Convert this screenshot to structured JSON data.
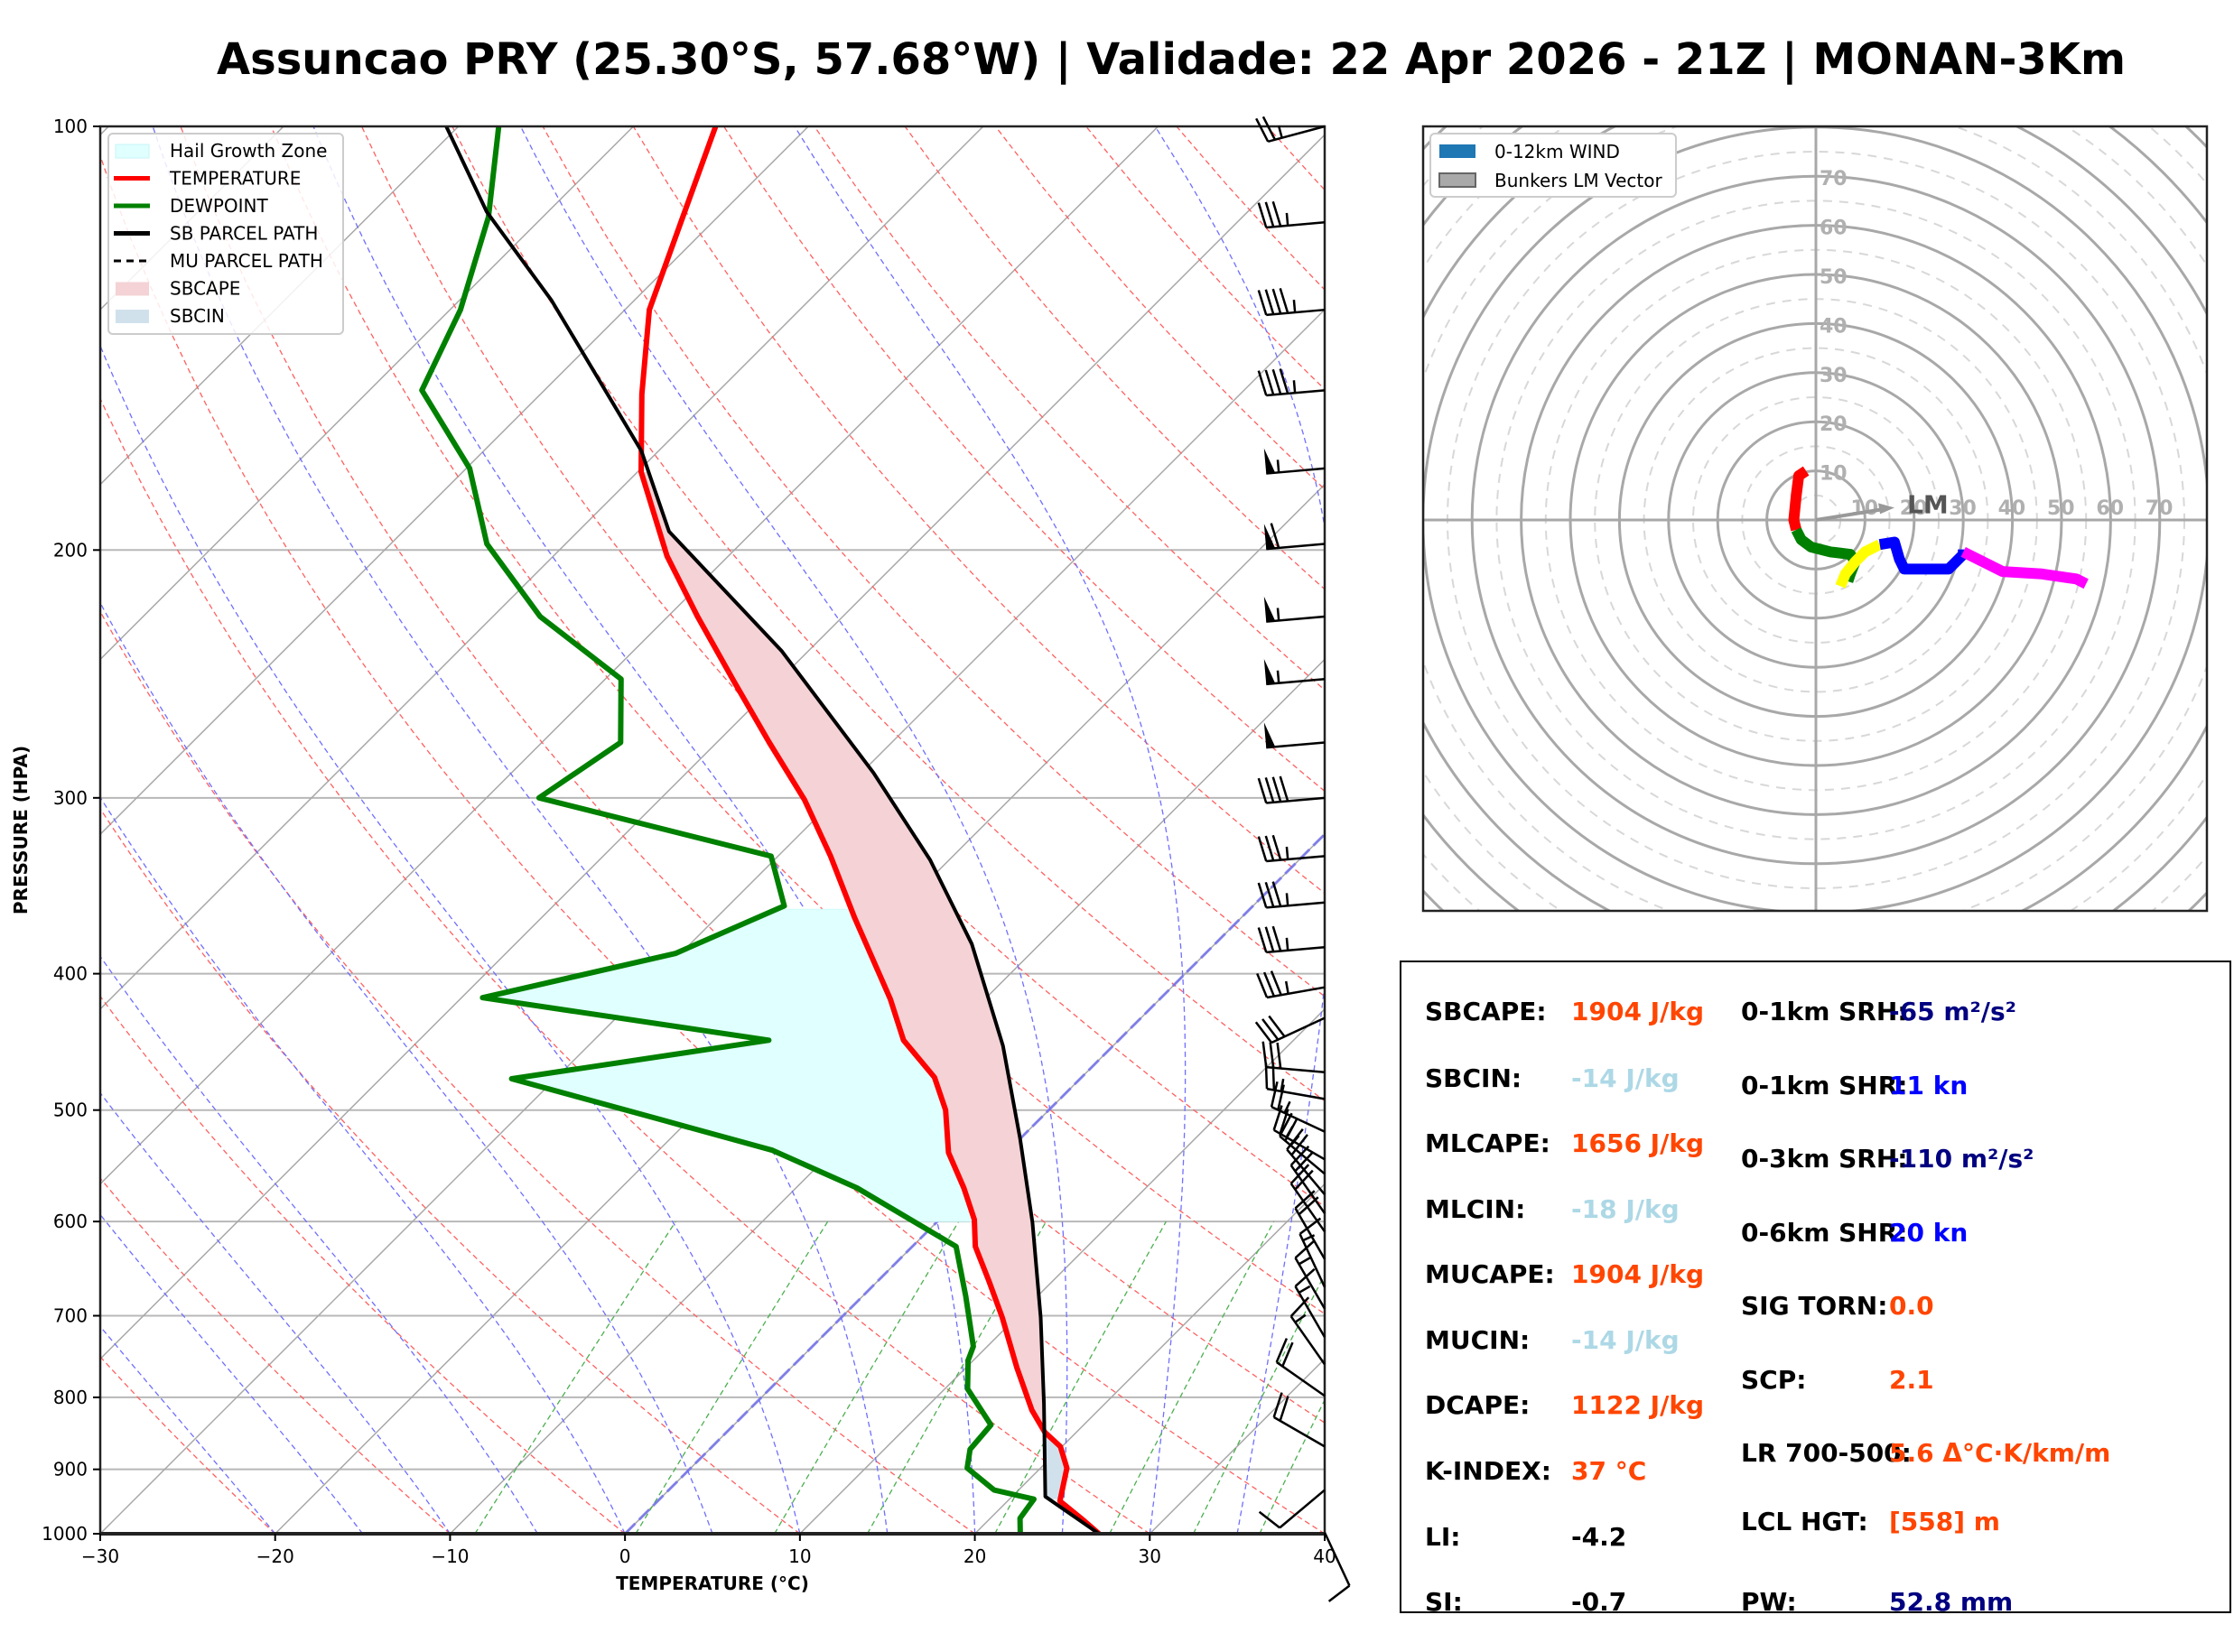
{
  "title": "Assuncao PRY (25.30°S, 57.68°W) | Validade: 22 Apr 2026 - 21Z | MONAN-3Km",
  "chart_data": [
    {
      "type": "line",
      "subtype": "skew-t",
      "xlabel": "TEMPERATURE (°C)",
      "ylabel": "PRESSURE (HPA)",
      "xlim": [
        -30,
        40
      ],
      "ylim": [
        1000,
        100
      ],
      "yscale": "log",
      "xticks": [
        -30,
        -20,
        -10,
        0,
        10,
        20,
        30,
        40
      ],
      "xtick_labels": [
        "−30",
        "−20",
        "−10",
        "0",
        "10",
        "20",
        "30",
        "40"
      ],
      "yticks": [
        100,
        200,
        300,
        400,
        500,
        600,
        700,
        800,
        900,
        1000
      ],
      "ytick_labels": [
        "100",
        "200",
        "300",
        "400",
        "500",
        "600",
        "700",
        "800",
        "900",
        "1000"
      ],
      "grid": true,
      "legend_position": "top-left",
      "legend": [
        {
          "label": "Hail Growth Zone",
          "kind": "patch",
          "color": "#e0ffff",
          "edge": "#c8f4f8"
        },
        {
          "label": "TEMPERATURE",
          "kind": "line",
          "color": "#ff0000"
        },
        {
          "label": "DEWPOINT",
          "kind": "line",
          "color": "#008000"
        },
        {
          "label": "SB PARCEL PATH",
          "kind": "line",
          "color": "#000000"
        },
        {
          "label": "MU PARCEL PATH",
          "kind": "dashed",
          "color": "#000000"
        },
        {
          "label": "SBCAPE",
          "kind": "patch",
          "color": "#f4d2d5"
        },
        {
          "label": "SBCIN",
          "kind": "patch",
          "color": "#d0e1ec"
        }
      ],
      "series": [
        {
          "name": "TEMPERATURE",
          "color": "#ff0000",
          "p": [
            1000,
            979,
            948,
            898,
            867,
            847,
            817,
            762,
            702,
            662,
            625,
            598,
            568,
            536,
            500,
            474,
            446,
            417,
            365,
            330,
            301,
            274,
            248,
            223,
            202,
            176,
            155,
            135,
            117,
            100
          ],
          "t": [
            27.1,
            25.5,
            23.0,
            21.5,
            19.9,
            18.2,
            16.2,
            12.9,
            9.2,
            6.4,
            3.6,
            2.0,
            -0.4,
            -3.3,
            -5.9,
            -8.4,
            -12.3,
            -15.4,
            -22.1,
            -27.0,
            -31.7,
            -37.0,
            -42.5,
            -48.3,
            -53.5,
            -59.8,
            -64.2,
            -68.6,
            -71.8,
            -75.3
          ]
        },
        {
          "name": "DEWPOINT",
          "color": "#008000",
          "p": [
            1000,
            975,
            945,
            931,
            898,
            871,
            837,
            789,
            753,
            736,
            702,
            678,
            625,
            568,
            534,
            508,
            475,
            446,
            416,
            387,
            358,
            330,
            300,
            274,
            247,
            223,
            198,
            175,
            154,
            135,
            116,
            100
          ],
          "t": [
            22.6,
            21.7,
            21.4,
            18.6,
            15.8,
            14.9,
            14.7,
            11.3,
            9.7,
            9.2,
            7.3,
            5.9,
            2.5,
            -6.5,
            -13.5,
            -21.6,
            -32.5,
            -20.0,
            -38.8,
            -30.3,
            -26.8,
            -30.4,
            -47.0,
            -45.5,
            -49.1,
            -57.3,
            -64.5,
            -69.8,
            -77.0,
            -79.4,
            -83.1,
            -87.7
          ]
        },
        {
          "name": "SB PARCEL PATH",
          "color": "#000000",
          "p": [
            1000,
            941,
            808,
            702,
            601,
            524,
            450,
            381,
            332,
            288,
            236,
            194,
            170,
            133,
            115,
            100
          ],
          "t": [
            27.1,
            21.9,
            16.5,
            11.4,
            5.5,
            0.0,
            -6.3,
            -13.9,
            -21.1,
            -29.3,
            -41.5,
            -54.8,
            -61.0,
            -74.7,
            -83.5,
            -90.7
          ]
        }
      ],
      "shaded_regions": [
        {
          "name": "SBCAPE",
          "color": "#f4d2d5",
          "p_range": [
            850,
            176
          ]
        },
        {
          "name": "SBCIN",
          "color": "#d0e1ec",
          "p_range": [
            945,
            850
          ]
        },
        {
          "name": "Hail Growth Zone",
          "color": "#e0ffff",
          "p_range": [
            600,
            360
          ]
        }
      ],
      "wind_barbs": {
        "p": [
          100,
          117,
          135,
          154,
          175,
          198,
          223,
          247,
          274,
          300,
          330,
          356,
          383,
          409,
          430,
          470,
          491,
          518,
          542,
          555,
          574,
          592,
          610,
          638,
          668,
          692,
          725,
          758,
          798,
          867,
          931,
          998
        ],
        "speed_kn": [
          25,
          35,
          45,
          45,
          55,
          60,
          55,
          55,
          50,
          40,
          35,
          35,
          35,
          35,
          30,
          30,
          25,
          25,
          25,
          25,
          20,
          20,
          20,
          20,
          15,
          15,
          15,
          15,
          20,
          20,
          10,
          10
        ],
        "direction_deg": [
          255,
          265,
          265,
          265,
          265,
          265,
          265,
          265,
          265,
          265,
          265,
          265,
          265,
          260,
          245,
          275,
          280,
          295,
          300,
          310,
          320,
          325,
          325,
          330,
          335,
          330,
          330,
          325,
          305,
          300,
          230,
          155
        ]
      }
    },
    {
      "type": "line",
      "subtype": "hodograph",
      "units": "kn",
      "rings": [
        10,
        20,
        30,
        40,
        50,
        60,
        70
      ],
      "ring_labels": [
        "10",
        "20",
        "30",
        "40",
        "50",
        "60",
        "70"
      ],
      "legend_position": "top-left",
      "legend": [
        {
          "label": "0-12km WIND",
          "color": "#1f77b4"
        },
        {
          "label": "Bunkers LM Vector",
          "color": "#a9a9a9"
        }
      ],
      "series": [
        {
          "name": "0-1km",
          "color": "#ff0000",
          "u": [
            -2,
            -3.5,
            -4,
            -4.5,
            -4
          ],
          "v": [
            10,
            9,
            5,
            0,
            -2
          ]
        },
        {
          "name": "1-3km",
          "color": "#008000",
          "u": [
            -4,
            -3,
            -1,
            3,
            7,
            8,
            7,
            6.5
          ],
          "v": [
            -2,
            -4,
            -5.5,
            -6.5,
            -7,
            -8.5,
            -11,
            -12.5
          ]
        },
        {
          "name": "3-6km",
          "color": "#ffff00",
          "u": [
            5,
            6,
            8,
            10,
            13
          ],
          "v": [
            -13.5,
            -11,
            -8.5,
            -6.5,
            -5
          ]
        },
        {
          "name": "6-9km",
          "color": "#0000ff",
          "u": [
            13,
            16,
            17,
            18,
            27,
            30,
            30
          ],
          "v": [
            -5,
            -4.5,
            -8,
            -10,
            -10,
            -7,
            -6
          ]
        },
        {
          "name": "9-12km",
          "color": "#ff00ff",
          "u": [
            30,
            38,
            46,
            53,
            55
          ],
          "v": [
            -6.5,
            -10.5,
            -11,
            -12,
            -13
          ]
        }
      ],
      "lm_vector": {
        "label": "LM",
        "u": 16,
        "v": 2.5
      }
    }
  ],
  "stats": {
    "left": [
      {
        "label": "SBCAPE:",
        "value": "1904 J/kg",
        "color": "#ff4500"
      },
      {
        "label": "SBCIN:",
        "value": "-14 J/kg",
        "color": "#add8e6"
      },
      {
        "label": "MLCAPE:",
        "value": "1656 J/kg",
        "color": "#ff4500"
      },
      {
        "label": "MLCIN:",
        "value": "-18 J/kg",
        "color": "#add8e6"
      },
      {
        "label": "MUCAPE:",
        "value": "1904 J/kg",
        "color": "#ff4500"
      },
      {
        "label": "MUCIN:",
        "value": "-14 J/kg",
        "color": "#add8e6"
      },
      {
        "label": "DCAPE:",
        "value": "1122 J/kg",
        "color": "#ff4500"
      },
      {
        "label": "K-INDEX:",
        "value": "37 °C",
        "color": "#ff4500"
      },
      {
        "label": "LI:",
        "value": "-4.2",
        "color": "#000000"
      },
      {
        "label": "SI:",
        "value": "-0.7",
        "color": "#000000"
      }
    ],
    "right": [
      {
        "label": "0-1km SRH:",
        "value": "-65 m²/s²",
        "color": "#000080"
      },
      {
        "label": "0-1km SHR:",
        "value": "11 kn",
        "color": "#0000ff"
      },
      {
        "label": "0-3km SRH:",
        "value": "-110 m²/s²",
        "color": "#000080"
      },
      {
        "label": "0-6km SHR:",
        "value": "20 kn",
        "color": "#0000ff"
      },
      {
        "label": "SIG TORN:",
        "value": "0.0",
        "color": "#ff4500"
      },
      {
        "label": "SCP:",
        "value": "2.1",
        "color": "#ff4500"
      },
      {
        "label": "LR 700-500:",
        "value": "5.6 Δ°C·K/km/m",
        "color": "#ff4500"
      },
      {
        "label": "LCL HGT:",
        "value": "[558] m",
        "color": "#ff4500"
      },
      {
        "label": "PW:",
        "value": "52.8 mm",
        "color": "#000080"
      }
    ]
  }
}
